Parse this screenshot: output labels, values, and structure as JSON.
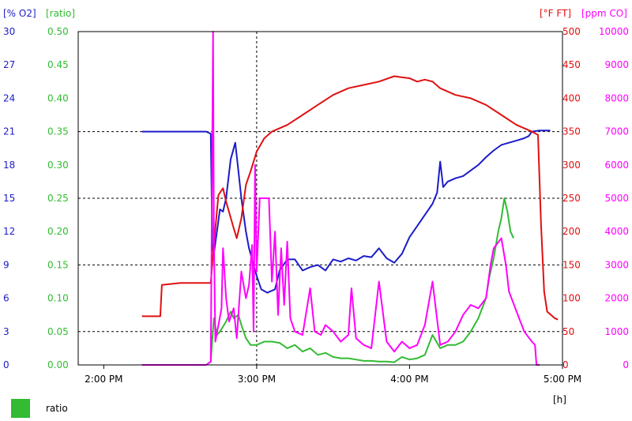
{
  "colors": {
    "o2": "#1c1cc8",
    "ratio": "#33bb33",
    "temp": "#e01010",
    "co": "#ff00ff",
    "frame": "#000000"
  },
  "chart_data": {
    "type": "line",
    "x_unit_label": "[h]",
    "x_ticks": [
      "2:00 PM",
      "3:00 PM",
      "4:00 PM",
      "5:00 PM"
    ],
    "x_range_hours": [
      13.833,
      17.0
    ],
    "axes": {
      "o2": {
        "unit_label": "[% O2]",
        "range": [
          0,
          30
        ],
        "ticks": [
          "0",
          "3",
          "6",
          "9",
          "12",
          "15",
          "18",
          "21",
          "24",
          "27",
          "30"
        ]
      },
      "ratio": {
        "unit_label": "[ratio]",
        "range": [
          0,
          0.5
        ],
        "ticks": [
          "0.00",
          "0.05",
          "0.10",
          "0.15",
          "0.20",
          "0.25",
          "0.30",
          "0.35",
          "0.40",
          "0.45",
          "0.50"
        ]
      },
      "temp": {
        "unit_label": "[°F FT]",
        "range": [
          0,
          500
        ],
        "ticks": [
          "0",
          "50",
          "100",
          "150",
          "200",
          "250",
          "300",
          "350",
          "400",
          "450",
          "500"
        ]
      },
      "co": {
        "unit_label": "[ppm CO]",
        "range": [
          0,
          10000
        ],
        "ticks": [
          "0",
          "1000",
          "2000",
          "3000",
          "4000",
          "5000",
          "6000",
          "7000",
          "8000",
          "9000",
          "10000"
        ]
      }
    },
    "grid": {
      "horizontal_dashed_values_o2": [
        3,
        9,
        15,
        21
      ],
      "vertical_dashed_hour": 15.0
    },
    "legend": {
      "label": "ratio",
      "placement": "bottom-left"
    },
    "series": [
      {
        "axis": "o2",
        "points": [
          [
            14.25,
            21.0
          ],
          [
            14.5,
            21.0
          ],
          [
            14.6,
            21.0
          ],
          [
            14.67,
            21.0
          ],
          [
            14.7,
            20.8
          ],
          [
            14.71,
            10.5
          ],
          [
            14.72,
            10.0
          ],
          [
            14.74,
            12.0
          ],
          [
            14.76,
            14.0
          ],
          [
            14.78,
            13.8
          ],
          [
            14.8,
            15.0
          ],
          [
            14.83,
            18.5
          ],
          [
            14.86,
            20.0
          ],
          [
            14.88,
            17.5
          ],
          [
            14.9,
            15.0
          ],
          [
            14.93,
            12.0
          ],
          [
            14.95,
            10.5
          ],
          [
            14.98,
            9.0
          ],
          [
            15.0,
            8.0
          ],
          [
            15.03,
            6.8
          ],
          [
            15.07,
            6.5
          ],
          [
            15.12,
            6.8
          ],
          [
            15.15,
            8.5
          ],
          [
            15.2,
            9.5
          ],
          [
            15.25,
            9.5
          ],
          [
            15.3,
            8.5
          ],
          [
            15.35,
            8.8
          ],
          [
            15.4,
            9.0
          ],
          [
            15.45,
            8.5
          ],
          [
            15.5,
            9.5
          ],
          [
            15.55,
            9.3
          ],
          [
            15.6,
            9.6
          ],
          [
            15.65,
            9.4
          ],
          [
            15.7,
            9.8
          ],
          [
            15.75,
            9.7
          ],
          [
            15.8,
            10.5
          ],
          [
            15.85,
            9.6
          ],
          [
            15.9,
            9.2
          ],
          [
            15.95,
            10.0
          ],
          [
            16.0,
            11.5
          ],
          [
            16.05,
            12.5
          ],
          [
            16.1,
            13.5
          ],
          [
            16.15,
            14.5
          ],
          [
            16.18,
            15.5
          ],
          [
            16.2,
            18.3
          ],
          [
            16.22,
            16.0
          ],
          [
            16.25,
            16.5
          ],
          [
            16.3,
            16.8
          ],
          [
            16.35,
            17.0
          ],
          [
            16.4,
            17.5
          ],
          [
            16.45,
            18.0
          ],
          [
            16.5,
            18.7
          ],
          [
            16.55,
            19.3
          ],
          [
            16.6,
            19.8
          ],
          [
            16.65,
            20.0
          ],
          [
            16.7,
            20.2
          ],
          [
            16.75,
            20.4
          ],
          [
            16.78,
            20.6
          ],
          [
            16.8,
            21.0
          ],
          [
            16.85,
            21.1
          ],
          [
            16.92,
            21.1
          ]
        ]
      },
      {
        "axis": "ratio",
        "points": [
          [
            14.25,
            0.0
          ],
          [
            14.5,
            0.0
          ],
          [
            14.67,
            0.0
          ],
          [
            14.7,
            0.005
          ],
          [
            14.72,
            0.07
          ],
          [
            14.74,
            0.045
          ],
          [
            14.76,
            0.05
          ],
          [
            14.8,
            0.065
          ],
          [
            14.83,
            0.08
          ],
          [
            14.85,
            0.07
          ],
          [
            14.88,
            0.075
          ],
          [
            14.9,
            0.06
          ],
          [
            14.93,
            0.04
          ],
          [
            14.96,
            0.03
          ],
          [
            15.0,
            0.03
          ],
          [
            15.05,
            0.035
          ],
          [
            15.1,
            0.035
          ],
          [
            15.15,
            0.033
          ],
          [
            15.2,
            0.025
          ],
          [
            15.25,
            0.03
          ],
          [
            15.3,
            0.02
          ],
          [
            15.35,
            0.025
          ],
          [
            15.4,
            0.015
          ],
          [
            15.45,
            0.018
          ],
          [
            15.5,
            0.012
          ],
          [
            15.55,
            0.01
          ],
          [
            15.6,
            0.01
          ],
          [
            15.65,
            0.008
          ],
          [
            15.7,
            0.006
          ],
          [
            15.75,
            0.006
          ],
          [
            15.8,
            0.005
          ],
          [
            15.85,
            0.005
          ],
          [
            15.9,
            0.004
          ],
          [
            15.95,
            0.012
          ],
          [
            16.0,
            0.008
          ],
          [
            16.05,
            0.01
          ],
          [
            16.1,
            0.015
          ],
          [
            16.15,
            0.045
          ],
          [
            16.2,
            0.025
          ],
          [
            16.25,
            0.03
          ],
          [
            16.3,
            0.03
          ],
          [
            16.35,
            0.035
          ],
          [
            16.4,
            0.05
          ],
          [
            16.45,
            0.07
          ],
          [
            16.5,
            0.1
          ],
          [
            16.52,
            0.13
          ],
          [
            16.55,
            0.16
          ],
          [
            16.58,
            0.2
          ],
          [
            16.6,
            0.22
          ],
          [
            16.62,
            0.25
          ],
          [
            16.64,
            0.23
          ],
          [
            16.66,
            0.2
          ],
          [
            16.68,
            0.19
          ]
        ]
      },
      {
        "axis": "temp",
        "points": [
          [
            14.25,
            73
          ],
          [
            14.37,
            73
          ],
          [
            14.38,
            120
          ],
          [
            14.5,
            123
          ],
          [
            14.6,
            123
          ],
          [
            14.7,
            123
          ],
          [
            14.72,
            180
          ],
          [
            14.75,
            255
          ],
          [
            14.78,
            265
          ],
          [
            14.8,
            245
          ],
          [
            14.85,
            205
          ],
          [
            14.87,
            190
          ],
          [
            14.9,
            220
          ],
          [
            14.93,
            270
          ],
          [
            14.96,
            290
          ],
          [
            15.0,
            320
          ],
          [
            15.05,
            340
          ],
          [
            15.1,
            350
          ],
          [
            15.2,
            360
          ],
          [
            15.3,
            375
          ],
          [
            15.4,
            390
          ],
          [
            15.5,
            405
          ],
          [
            15.6,
            415
          ],
          [
            15.7,
            420
          ],
          [
            15.8,
            425
          ],
          [
            15.9,
            433
          ],
          [
            16.0,
            430
          ],
          [
            16.05,
            425
          ],
          [
            16.1,
            428
          ],
          [
            16.15,
            425
          ],
          [
            16.2,
            415
          ],
          [
            16.3,
            405
          ],
          [
            16.4,
            400
          ],
          [
            16.5,
            390
          ],
          [
            16.6,
            375
          ],
          [
            16.7,
            360
          ],
          [
            16.8,
            350
          ],
          [
            16.84,
            345
          ],
          [
            16.86,
            210
          ],
          [
            16.88,
            110
          ],
          [
            16.9,
            80
          ],
          [
            16.95,
            70
          ],
          [
            16.97,
            68
          ]
        ]
      },
      {
        "axis": "co",
        "points": [
          [
            14.25,
            0
          ],
          [
            14.5,
            0
          ],
          [
            14.67,
            0
          ],
          [
            14.7,
            100
          ],
          [
            14.71,
            7000
          ],
          [
            14.715,
            10000
          ],
          [
            14.72,
            4000
          ],
          [
            14.73,
            700
          ],
          [
            14.75,
            1200
          ],
          [
            14.77,
            1700
          ],
          [
            14.78,
            3500
          ],
          [
            14.8,
            2000
          ],
          [
            14.82,
            1300
          ],
          [
            14.85,
            1700
          ],
          [
            14.87,
            800
          ],
          [
            14.9,
            2800
          ],
          [
            14.93,
            2000
          ],
          [
            14.95,
            2400
          ],
          [
            14.97,
            3600
          ],
          [
            14.98,
            1000
          ],
          [
            14.99,
            6000
          ],
          [
            15.0,
            2800
          ],
          [
            15.02,
            5000
          ],
          [
            15.08,
            5000
          ],
          [
            15.1,
            2500
          ],
          [
            15.12,
            4000
          ],
          [
            15.14,
            1500
          ],
          [
            15.16,
            3500
          ],
          [
            15.18,
            1800
          ],
          [
            15.2,
            3700
          ],
          [
            15.22,
            1400
          ],
          [
            15.25,
            1000
          ],
          [
            15.3,
            900
          ],
          [
            15.35,
            2300
          ],
          [
            15.38,
            1000
          ],
          [
            15.42,
            900
          ],
          [
            15.45,
            1200
          ],
          [
            15.5,
            1000
          ],
          [
            15.55,
            700
          ],
          [
            15.6,
            900
          ],
          [
            15.62,
            2300
          ],
          [
            15.65,
            800
          ],
          [
            15.7,
            600
          ],
          [
            15.75,
            500
          ],
          [
            15.8,
            2500
          ],
          [
            15.85,
            700
          ],
          [
            15.9,
            400
          ],
          [
            15.95,
            700
          ],
          [
            16.0,
            500
          ],
          [
            16.05,
            600
          ],
          [
            16.1,
            1200
          ],
          [
            16.15,
            2500
          ],
          [
            16.2,
            600
          ],
          [
            16.25,
            700
          ],
          [
            16.3,
            1000
          ],
          [
            16.35,
            1500
          ],
          [
            16.4,
            1800
          ],
          [
            16.45,
            1700
          ],
          [
            16.5,
            2000
          ],
          [
            16.53,
            3000
          ],
          [
            16.55,
            3500
          ],
          [
            16.6,
            3800
          ],
          [
            16.63,
            3000
          ],
          [
            16.65,
            2200
          ],
          [
            16.7,
            1600
          ],
          [
            16.75,
            1000
          ],
          [
            16.8,
            700
          ],
          [
            16.82,
            600
          ],
          [
            16.83,
            0
          ],
          [
            16.85,
            0
          ]
        ]
      }
    ]
  }
}
